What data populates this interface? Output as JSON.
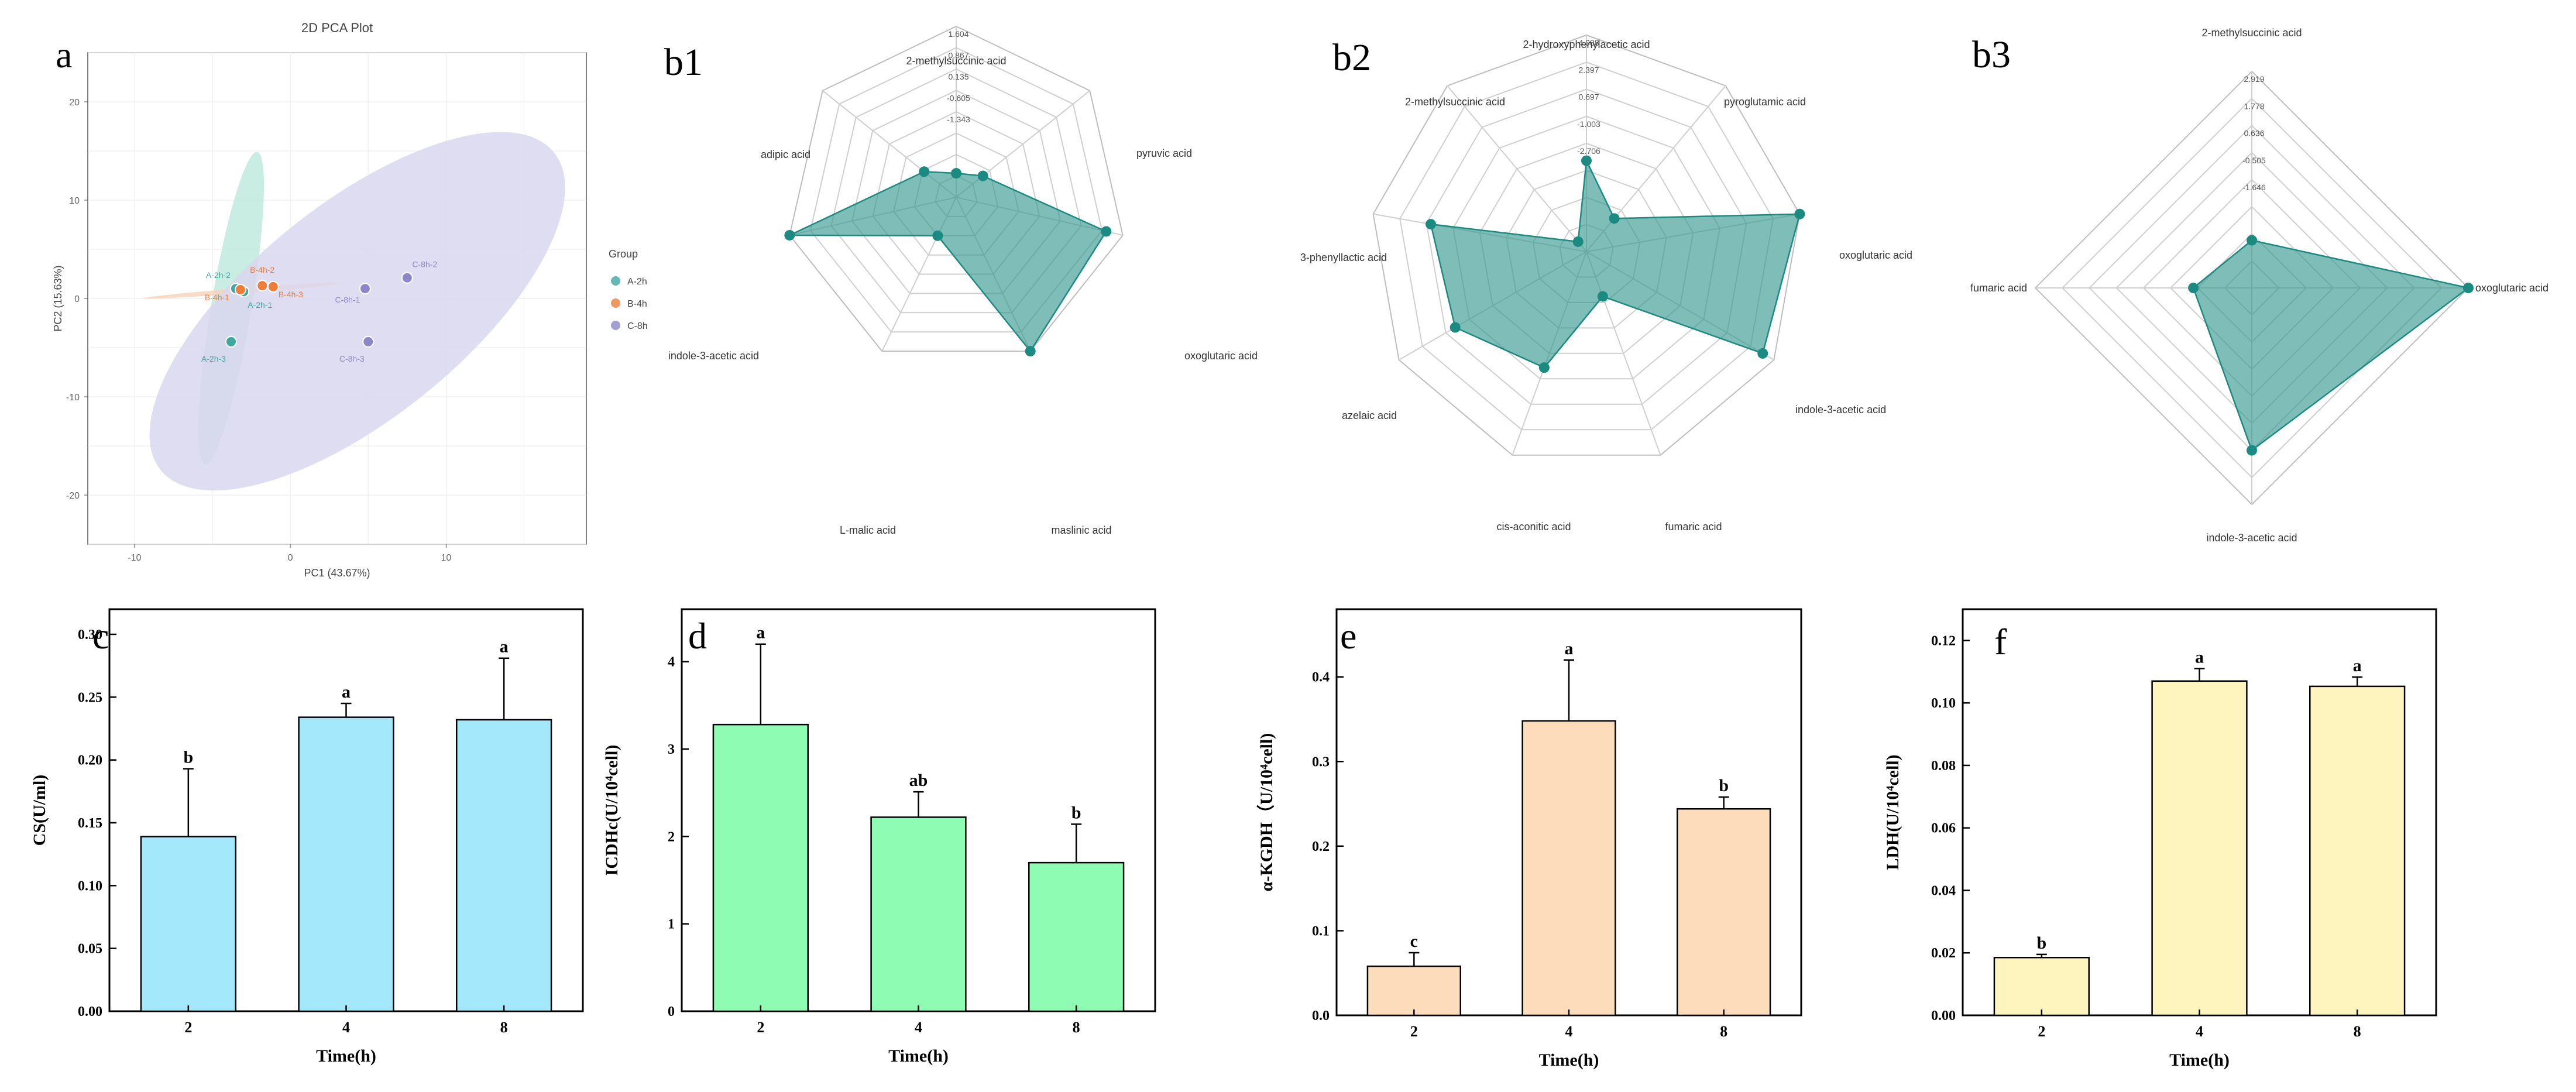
{
  "colors": {
    "teal": "#3fa6a0",
    "teal_dark": "#1b8a80",
    "orange": "#ee7d3b",
    "purple": "#8c87c8",
    "ellipse_a": "#bfe9de",
    "ellipse_b": "#f8d4bd",
    "ellipse_c": "#d9d7ef",
    "bar_c": "#a4e8fb",
    "bar_d": "#8ffcb3",
    "bar_e": "#fddcbc",
    "bar_f": "#fdf4be"
  },
  "chart_data": [
    {
      "panel": "a",
      "type": "scatter",
      "title": "2D PCA Plot",
      "xlabel": "PC1 (43.67%)",
      "ylabel": "PC2 (15.63%)",
      "xlim": [
        -13,
        19
      ],
      "ylim": [
        -25,
        25
      ],
      "xticks": [
        -10,
        0,
        10
      ],
      "yticks": [
        -20,
        -10,
        0,
        10,
        20
      ],
      "grid": true,
      "legend_title": "Group",
      "legend_position": "right",
      "series": [
        {
          "name": "A-2h",
          "points": [
            {
              "label": "A-2h-2",
              "x": -3.5,
              "y": 1.0
            },
            {
              "label": "A-2h-1",
              "x": -3.0,
              "y": 0.7
            },
            {
              "label": "A-2h-3",
              "x": -3.8,
              "y": -4.4
            }
          ]
        },
        {
          "name": "B-4h",
          "points": [
            {
              "label": "B-4h-2",
              "x": -1.8,
              "y": 1.3
            },
            {
              "label": "B-4h-1",
              "x": -3.2,
              "y": 0.9
            },
            {
              "label": "B-4h-3",
              "x": -1.1,
              "y": 1.2
            }
          ]
        },
        {
          "name": "C-8h",
          "points": [
            {
              "label": "C-8h-2",
              "x": 7.5,
              "y": 2.1
            },
            {
              "label": "C-8h-1",
              "x": 4.8,
              "y": 1.0
            },
            {
              "label": "C-8h-3",
              "x": 5.0,
              "y": -4.4
            }
          ]
        }
      ],
      "ellipses": [
        {
          "group": "A-2h",
          "cx": -3.8,
          "cy": -1.0,
          "rx": 16.0,
          "ry": 1.3,
          "angle": 84
        },
        {
          "group": "B-4h",
          "cx": -3.0,
          "cy": 0.8,
          "rx": 6.5,
          "ry": 0.25,
          "angle": 7
        },
        {
          "group": "C-8h",
          "cx": 4.3,
          "cy": -1.3,
          "rx": 20.5,
          "ry": 7.8,
          "angle": 52
        }
      ]
    },
    {
      "panel": "b1",
      "type": "radar",
      "rings": 8,
      "tick_labels": [
        "1.604",
        "0.867",
        "0.135",
        "-0.605",
        "-1.343"
      ],
      "axes": [
        {
          "label": "2-methylsuccinic acid",
          "value": 0.14
        },
        {
          "label": "pyruvic acid",
          "value": 0.2
        },
        {
          "label": "oxoglutaric acid",
          "value": 0.9
        },
        {
          "label": "maslinic acid",
          "value": 1.0
        },
        {
          "label": "L-malic acid",
          "value": 0.25
        },
        {
          "label": "indole-3-acetic acid",
          "value": 1.0
        },
        {
          "label": "adipic acid",
          "value": 0.24
        }
      ]
    },
    {
      "panel": "b2",
      "type": "radar",
      "rings": 8,
      "tick_labels": [
        "4.088",
        "2.397",
        "0.697",
        "-1.003",
        "-2.706"
      ],
      "axes": [
        {
          "label": "2-hydroxyphenylacetic acid",
          "value": 0.42
        },
        {
          "label": "pyroglutamic acid",
          "value": 0.2
        },
        {
          "label": "oxoglutaric acid",
          "value": 1.0
        },
        {
          "label": "indole-3-acetic acid",
          "value": 0.94
        },
        {
          "label": "fumaric acid",
          "value": 0.22
        },
        {
          "label": "cis-aconitic acid",
          "value": 0.57
        },
        {
          "label": "azelaic acid",
          "value": 0.7
        },
        {
          "label": "3-phenyllactic acid",
          "value": 0.73
        },
        {
          "label": "2-methylsuccinic acid",
          "value": 0.06
        }
      ]
    },
    {
      "panel": "b3",
      "type": "radar",
      "rings": 8,
      "tick_labels": [
        "2.919",
        "1.778",
        "0.636",
        "-0.505",
        "-1.646"
      ],
      "axes": [
        {
          "label": "2-methylsuccinic acid",
          "value": 0.22
        },
        {
          "label": "oxoglutaric acid",
          "value": 1.0
        },
        {
          "label": "indole-3-acetic acid",
          "value": 0.75
        },
        {
          "label": "fumaric acid",
          "value": 0.27
        }
      ]
    },
    {
      "panel": "c",
      "type": "bar",
      "categories": [
        "2",
        "4",
        "8"
      ],
      "values": [
        0.139,
        0.234,
        0.232
      ],
      "errors": [
        0.054,
        0.011,
        0.049
      ],
      "letters": [
        "b",
        "a",
        "a"
      ],
      "xlabel": "Time(h)",
      "ylabel": "CS(U/ml)",
      "ylim": [
        0,
        0.32
      ],
      "yticks": [
        "0.00",
        "0.05",
        "0.10",
        "0.15",
        "0.20",
        "0.25",
        "0.30"
      ]
    },
    {
      "panel": "d",
      "type": "bar",
      "categories": [
        "2",
        "4",
        "8"
      ],
      "values": [
        3.28,
        2.22,
        1.7
      ],
      "errors": [
        0.92,
        0.29,
        0.44
      ],
      "letters": [
        "a",
        "ab",
        "b"
      ],
      "xlabel": "Time(h)",
      "ylabel": "ICDHc(U/10⁴cell)",
      "ylim": [
        0,
        4.6
      ],
      "yticks": [
        "0",
        "1",
        "2",
        "3",
        "4"
      ]
    },
    {
      "panel": "e",
      "type": "bar",
      "categories": [
        "2",
        "4",
        "8"
      ],
      "values": [
        0.058,
        0.348,
        0.244
      ],
      "errors": [
        0.016,
        0.072,
        0.014
      ],
      "letters": [
        "c",
        "a",
        "b"
      ],
      "xlabel": "Time(h)",
      "ylabel": "α-KGDH（U/10⁴cell)",
      "ylim": [
        0,
        0.48
      ],
      "yticks": [
        "0.0",
        "0.1",
        "0.2",
        "0.3",
        "0.4"
      ]
    },
    {
      "panel": "f",
      "type": "bar",
      "categories": [
        "2",
        "4",
        "8"
      ],
      "values": [
        0.0185,
        0.107,
        0.1053
      ],
      "errors": [
        0.001,
        0.004,
        0.003
      ],
      "letters": [
        "b",
        "a",
        "a"
      ],
      "xlabel": "Time(h)",
      "ylabel": "LDH(U/10⁴cell)",
      "ylim": [
        0,
        0.13
      ],
      "yticks": [
        "0.00",
        "0.02",
        "0.04",
        "0.06",
        "0.08",
        "0.10",
        "0.12"
      ]
    }
  ]
}
